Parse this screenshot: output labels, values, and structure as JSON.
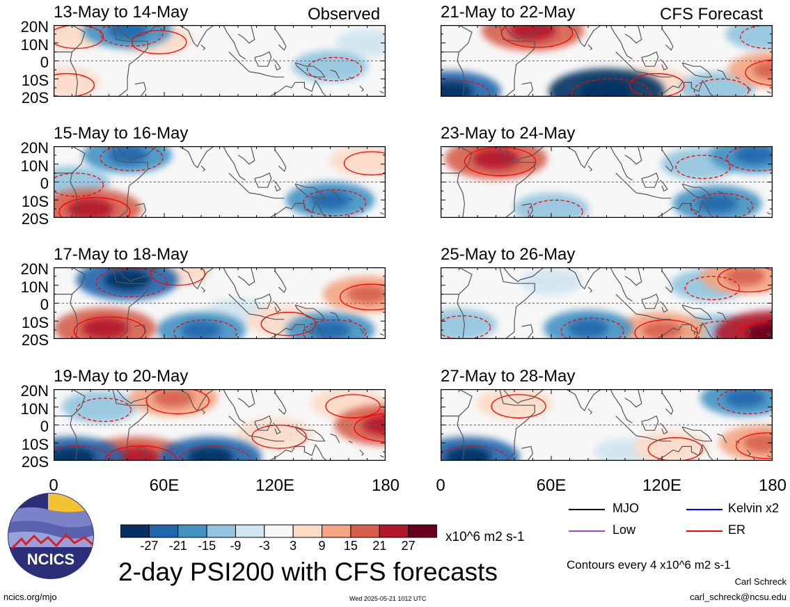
{
  "header": {
    "left_tag": "Observed",
    "right_tag": "CFS Forecast"
  },
  "panels": [
    {
      "title": "13-May to 14-May"
    },
    {
      "title": "15-May to 16-May"
    },
    {
      "title": "17-May to 18-May"
    },
    {
      "title": "19-May to 20-May"
    },
    {
      "title": "21-May to 22-May"
    },
    {
      "title": "23-May to 24-May"
    },
    {
      "title": "25-May to 26-May"
    },
    {
      "title": "27-May to 28-May"
    }
  ],
  "y_axis": {
    "labels": [
      "20N",
      "10N",
      "0",
      "10S",
      "20S"
    ]
  },
  "x_axis": {
    "labels": [
      "0",
      "60E",
      "120E",
      "180"
    ]
  },
  "colorbar": {
    "labels": [
      "-27",
      "-21",
      "-15",
      "-9",
      "-3",
      "3",
      "9",
      "15",
      "21",
      "27"
    ],
    "unit": "x10^6 m2 s-1",
    "colors": [
      "#053061",
      "#2166ac",
      "#4393c3",
      "#92c5de",
      "#d1e5f0",
      "#f7f7f7",
      "#fddbc7",
      "#f4a582",
      "#d6604d",
      "#b2182b",
      "#67001f"
    ]
  },
  "legend": {
    "items": [
      {
        "label": "MJO",
        "color": "#000000"
      },
      {
        "label": "Kelvin x2",
        "color": "#0000ff"
      },
      {
        "label": "Low",
        "color": "#a040e0"
      },
      {
        "label": "ER",
        "color": "#ff0000"
      }
    ]
  },
  "footer": {
    "main_title": "2-day PSI200 with CFS forecasts",
    "contour_note": "Contours every 4 x10^6 m2 s-1",
    "author": "Carl Schreck",
    "email": "carl_schreck@ncsu.edu",
    "url": "ncics.org/mjo",
    "timestamp": "Wed 2025-05-21 1012 UTC",
    "logo_text": "NCICS"
  },
  "chart_data": {
    "type": "heatmap",
    "title": "2-day PSI200 with CFS forecasts",
    "xlabel": "",
    "ylabel": "",
    "x_ticks": [
      "0",
      "60E",
      "120E",
      "180"
    ],
    "y_ticks": [
      "20N",
      "10N",
      "0",
      "10S",
      "20S"
    ],
    "xlim": [
      0,
      180
    ],
    "ylim": [
      -20,
      20
    ],
    "value_unit": "x10^6 m2 s-1",
    "levels": [
      -27,
      -21,
      -15,
      -9,
      -3,
      3,
      9,
      15,
      21,
      27
    ],
    "panels": [
      {
        "title": "13-May to 14-May",
        "source": "Observed",
        "blobs": [
          {
            "lon": 40,
            "lat": 17,
            "val": -15
          },
          {
            "lon": 10,
            "lat": 15,
            "val": 9
          },
          {
            "lon": 5,
            "lat": -12,
            "val": 9
          },
          {
            "lon": 55,
            "lat": 12,
            "val": 9
          },
          {
            "lon": 150,
            "lat": -3,
            "val": -9
          },
          {
            "lon": 90,
            "lat": -12,
            "val": 3
          },
          {
            "lon": 60,
            "lat": -10,
            "val": 3
          },
          {
            "lon": 170,
            "lat": 10,
            "val": -3
          }
        ]
      },
      {
        "title": "15-May to 16-May",
        "source": "Observed",
        "blobs": [
          {
            "lon": 20,
            "lat": -15,
            "val": 21
          },
          {
            "lon": 40,
            "lat": 15,
            "val": -15
          },
          {
            "lon": 150,
            "lat": -10,
            "val": -15
          },
          {
            "lon": 170,
            "lat": 12,
            "val": 9
          },
          {
            "lon": 10,
            "lat": 0,
            "val": -9
          },
          {
            "lon": 70,
            "lat": 10,
            "val": 3
          },
          {
            "lon": 100,
            "lat": -8,
            "val": 3
          },
          {
            "lon": 60,
            "lat": -12,
            "val": 3
          }
        ]
      },
      {
        "title": "17-May to 18-May",
        "source": "Observed",
        "blobs": [
          {
            "lon": 28,
            "lat": -14,
            "val": 21
          },
          {
            "lon": 40,
            "lat": 13,
            "val": -21
          },
          {
            "lon": 80,
            "lat": -15,
            "val": -15
          },
          {
            "lon": 150,
            "lat": -15,
            "val": -15
          },
          {
            "lon": 170,
            "lat": 5,
            "val": 15
          },
          {
            "lon": 125,
            "lat": -10,
            "val": 9
          },
          {
            "lon": 65,
            "lat": 18,
            "val": 9
          },
          {
            "lon": 100,
            "lat": -5,
            "val": -3
          }
        ]
      },
      {
        "title": "19-May to 20-May",
        "source": "Observed",
        "blobs": [
          {
            "lon": 45,
            "lat": -18,
            "val": 21
          },
          {
            "lon": 10,
            "lat": -18,
            "val": -21
          },
          {
            "lon": 85,
            "lat": -18,
            "val": -21
          },
          {
            "lon": 180,
            "lat": 0,
            "val": 21
          },
          {
            "lon": 65,
            "lat": 15,
            "val": 15
          },
          {
            "lon": 25,
            "lat": 10,
            "val": -9
          },
          {
            "lon": 160,
            "lat": 12,
            "val": 9
          },
          {
            "lon": 120,
            "lat": -5,
            "val": 9
          }
        ]
      },
      {
        "title": "21-May to 22-May",
        "source": "CFS Forecast",
        "blobs": [
          {
            "lon": 50,
            "lat": 17,
            "val": 21
          },
          {
            "lon": 90,
            "lat": -17,
            "val": -27
          },
          {
            "lon": 5,
            "lat": -17,
            "val": -21
          },
          {
            "lon": 180,
            "lat": -5,
            "val": 15
          },
          {
            "lon": 115,
            "lat": -12,
            "val": 9
          },
          {
            "lon": 150,
            "lat": -15,
            "val": -9
          },
          {
            "lon": 175,
            "lat": 15,
            "val": -9
          },
          {
            "lon": 110,
            "lat": 12,
            "val": 3
          }
        ]
      },
      {
        "title": "23-May to 24-May",
        "source": "CFS Forecast",
        "blobs": [
          {
            "lon": 30,
            "lat": 13,
            "val": 21
          },
          {
            "lon": 170,
            "lat": 15,
            "val": -15
          },
          {
            "lon": 150,
            "lat": -12,
            "val": -15
          },
          {
            "lon": 100,
            "lat": -10,
            "val": 3
          },
          {
            "lon": 60,
            "lat": -15,
            "val": -9
          },
          {
            "lon": 140,
            "lat": 10,
            "val": -9
          },
          {
            "lon": 10,
            "lat": -10,
            "val": 3
          }
        ]
      },
      {
        "title": "25-May to 26-May",
        "source": "CFS Forecast",
        "blobs": [
          {
            "lon": 180,
            "lat": -17,
            "val": 27
          },
          {
            "lon": 120,
            "lat": -15,
            "val": 15
          },
          {
            "lon": 80,
            "lat": -14,
            "val": -15
          },
          {
            "lon": 165,
            "lat": 15,
            "val": 15
          },
          {
            "lon": 150,
            "lat": -15,
            "val": -9
          },
          {
            "lon": 10,
            "lat": -12,
            "val": -9
          },
          {
            "lon": 60,
            "lat": 12,
            "val": -3
          },
          {
            "lon": 145,
            "lat": 10,
            "val": -9
          }
        ]
      },
      {
        "title": "27-May to 28-May",
        "source": "CFS Forecast",
        "blobs": [
          {
            "lon": 15,
            "lat": -18,
            "val": -21
          },
          {
            "lon": 40,
            "lat": 12,
            "val": 9
          },
          {
            "lon": 165,
            "lat": 15,
            "val": -15
          },
          {
            "lon": 175,
            "lat": -10,
            "val": 15
          },
          {
            "lon": 125,
            "lat": -12,
            "val": 9
          },
          {
            "lon": 85,
            "lat": 8,
            "val": 3
          },
          {
            "lon": 100,
            "lat": -15,
            "val": -3
          }
        ]
      }
    ]
  }
}
